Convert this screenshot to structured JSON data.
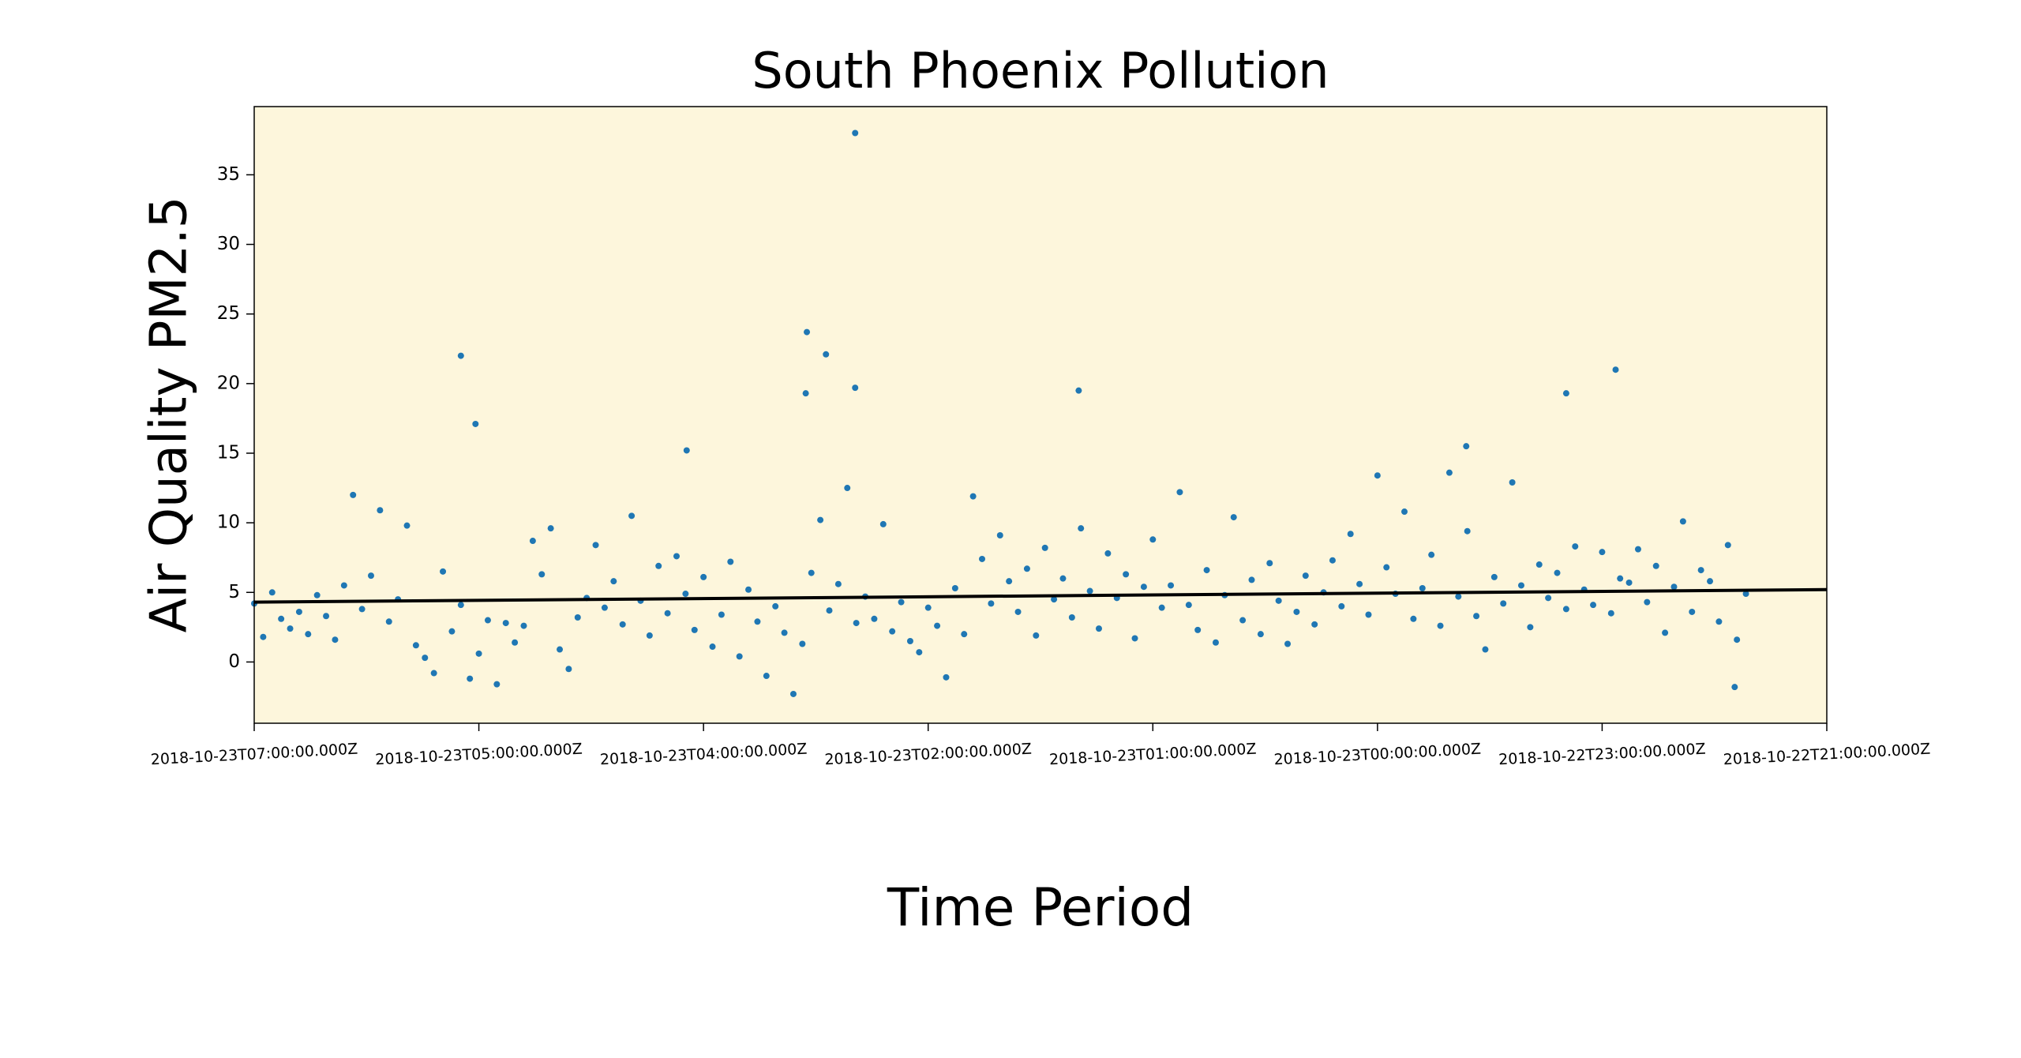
{
  "chart_data": {
    "type": "scatter",
    "title": "South Phoenix Pollution",
    "x_label": "Time Period",
    "y_label": "Air Quality PM2.5",
    "xlim": [
      0,
      1400
    ],
    "ylim": [
      -4.4,
      39.9
    ],
    "xticks": [
      {
        "value": 0,
        "label": "2018-10-23T07:00:00.000Z"
      },
      {
        "value": 200,
        "label": "2018-10-23T05:00:00.000Z"
      },
      {
        "value": 400,
        "label": "2018-10-23T04:00:00.000Z"
      },
      {
        "value": 600,
        "label": "2018-10-23T02:00:00.000Z"
      },
      {
        "value": 800,
        "label": "2018-10-23T01:00:00.000Z"
      },
      {
        "value": 1000,
        "label": "2018-10-23T00:00:00.000Z"
      },
      {
        "value": 1200,
        "label": "2018-10-22T23:00:00.000Z"
      },
      {
        "value": 1400,
        "label": "2018-10-22T21:00:00.000Z"
      }
    ],
    "yticks": [
      0,
      5,
      10,
      15,
      20,
      25,
      30,
      35
    ],
    "background": "#fdf6dc",
    "series": [
      {
        "color": "#1f77b4",
        "x": [
          0,
          8,
          16,
          24,
          32,
          40,
          48,
          56,
          64,
          72,
          80,
          88,
          96,
          104,
          112,
          120,
          128,
          136,
          144,
          152,
          160,
          168,
          176,
          184,
          192,
          200,
          208,
          216,
          224,
          232,
          240,
          248,
          256,
          264,
          272,
          280,
          288,
          296,
          304,
          312,
          320,
          328,
          336,
          344,
          352,
          360,
          368,
          376,
          384,
          392,
          400,
          408,
          416,
          424,
          432,
          440,
          448,
          456,
          464,
          472,
          480,
          488,
          496,
          504,
          512,
          520,
          528,
          536,
          544,
          552,
          560,
          568,
          576,
          584,
          592,
          600,
          608,
          616,
          624,
          632,
          640,
          648,
          656,
          664,
          672,
          680,
          688,
          696,
          704,
          712,
          720,
          728,
          736,
          744,
          752,
          760,
          768,
          776,
          784,
          792,
          800,
          808,
          816,
          824,
          832,
          840,
          848,
          856,
          864,
          872,
          880,
          888,
          896,
          904,
          912,
          920,
          928,
          936,
          944,
          952,
          960,
          968,
          976,
          984,
          992,
          1000,
          1008,
          1016,
          1024,
          1032,
          1040,
          1048,
          1056,
          1064,
          1072,
          1080,
          1088,
          1096,
          1104,
          1112,
          1120,
          1128,
          1136,
          1144,
          1152,
          1160,
          1168,
          1176,
          1184,
          1192,
          1200,
          1208,
          1216,
          1224,
          1232,
          1240,
          1248,
          1256,
          1264,
          1272,
          1280,
          1288,
          1296,
          1304,
          1312,
          1320,
          1328,
          184,
          197,
          385,
          491,
          492,
          509,
          535,
          535,
          734,
          1079,
          1168,
          1212,
          1318
        ],
        "values": [
          4.2,
          1.8,
          5.0,
          3.1,
          2.4,
          3.6,
          2.0,
          4.8,
          3.3,
          1.6,
          5.5,
          12.0,
          3.8,
          6.2,
          10.9,
          2.9,
          4.5,
          9.8,
          1.2,
          0.3,
          -0.8,
          6.5,
          2.2,
          4.1,
          -1.2,
          0.6,
          3.0,
          -1.6,
          2.8,
          1.4,
          2.6,
          8.7,
          6.3,
          9.6,
          0.9,
          -0.5,
          3.2,
          4.6,
          8.4,
          3.9,
          5.8,
          2.7,
          10.5,
          4.4,
          1.9,
          6.9,
          3.5,
          7.6,
          4.9,
          2.3,
          6.1,
          1.1,
          3.4,
          7.2,
          0.4,
          5.2,
          2.9,
          -1.0,
          4.0,
          2.1,
          -2.3,
          1.3,
          6.4,
          10.2,
          3.7,
          5.6,
          12.5,
          2.8,
          4.7,
          3.1,
          9.9,
          2.2,
          4.3,
          1.5,
          0.7,
          3.9,
          2.6,
          -1.1,
          5.3,
          2.0,
          11.9,
          7.4,
          4.2,
          9.1,
          5.8,
          3.6,
          6.7,
          1.9,
          8.2,
          4.5,
          6.0,
          3.2,
          9.6,
          5.1,
          2.4,
          7.8,
          4.6,
          6.3,
          1.7,
          5.4,
          8.8,
          3.9,
          5.5,
          12.2,
          4.1,
          2.3,
          6.6,
          1.4,
          4.8,
          10.4,
          3.0,
          5.9,
          2.0,
          7.1,
          4.4,
          1.3,
          3.6,
          6.2,
          2.7,
          5.0,
          7.3,
          4.0,
          9.2,
          5.6,
          3.4,
          13.4,
          6.8,
          4.9,
          10.8,
          3.1,
          5.3,
          7.7,
          2.6,
          13.6,
          4.7,
          9.4,
          3.3,
          0.9,
          6.1,
          4.2,
          12.9,
          5.5,
          2.5,
          7.0,
          4.6,
          6.4,
          3.8,
          8.3,
          5.2,
          4.1,
          7.9,
          3.5,
          6.0,
          5.7,
          8.1,
          4.3,
          6.9,
          2.1,
          5.4,
          10.1,
          3.6,
          6.6,
          5.8,
          2.9,
          8.4,
          1.6,
          4.9,
          22.0,
          17.1,
          15.2,
          19.3,
          23.7,
          22.1,
          38.0,
          19.7,
          19.5,
          15.5,
          19.3,
          21.0,
          -1.8
        ]
      }
    ],
    "trend_line": {
      "x": [
        0,
        1400
      ],
      "values": [
        4.3,
        5.2
      ],
      "color": "#000000"
    }
  }
}
